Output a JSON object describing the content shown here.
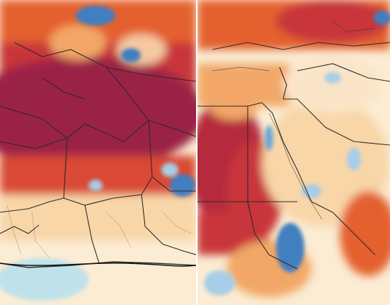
{
  "map": {
    "panels": [
      {
        "region": "north-west-africa"
      },
      {
        "region": "north-east-africa-middle-east"
      }
    ],
    "palette": {
      "extreme_heat": "#9b2346",
      "very_hot": "#c8353a",
      "hot": "#e4602e",
      "warm": "#f2a768",
      "mild_warm": "#f8d6a7",
      "neutral": "#fbecd3",
      "cool": "#a8cde6",
      "cold": "#3f7fc0",
      "borders": "#2a2a2a",
      "divider": "#ffffff"
    }
  }
}
